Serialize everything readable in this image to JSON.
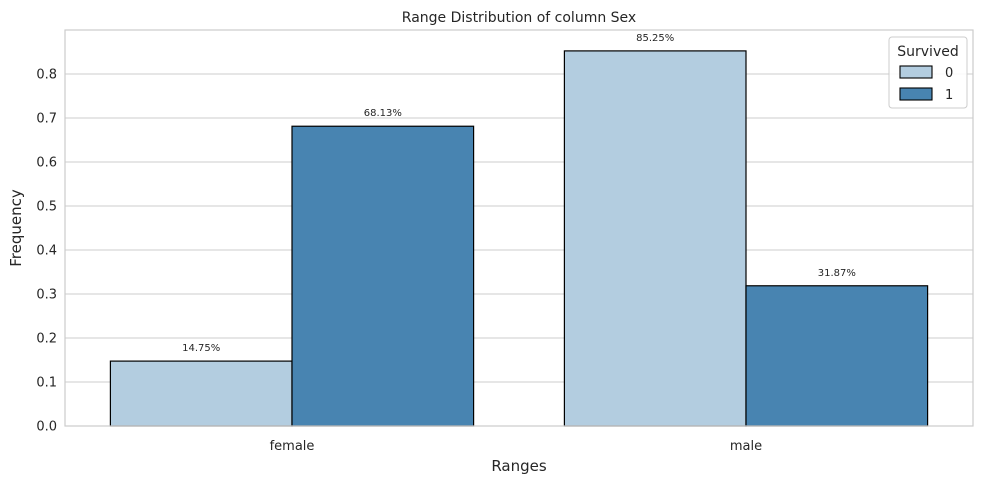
{
  "chart_data": {
    "type": "bar",
    "title": "Range Distribution of column Sex",
    "xlabel": "Ranges",
    "ylabel": "Frequency",
    "categories": [
      "female",
      "male"
    ],
    "series": [
      {
        "name": "0",
        "values": [
          0.1475,
          0.8525
        ],
        "labels": [
          "14.75%",
          "85.25%"
        ],
        "color": "#b3cde0"
      },
      {
        "name": "1",
        "values": [
          0.6813,
          0.3187
        ],
        "labels": [
          "68.13%",
          "31.87%"
        ],
        "color": "#4884b1"
      }
    ],
    "ylim": [
      0,
      0.9
    ],
    "yticks": [
      "0.0",
      "0.1",
      "0.2",
      "0.3",
      "0.4",
      "0.5",
      "0.6",
      "0.7",
      "0.8"
    ],
    "grid": "horizontal",
    "legend": {
      "title": "Survived",
      "position": "top-right"
    }
  }
}
